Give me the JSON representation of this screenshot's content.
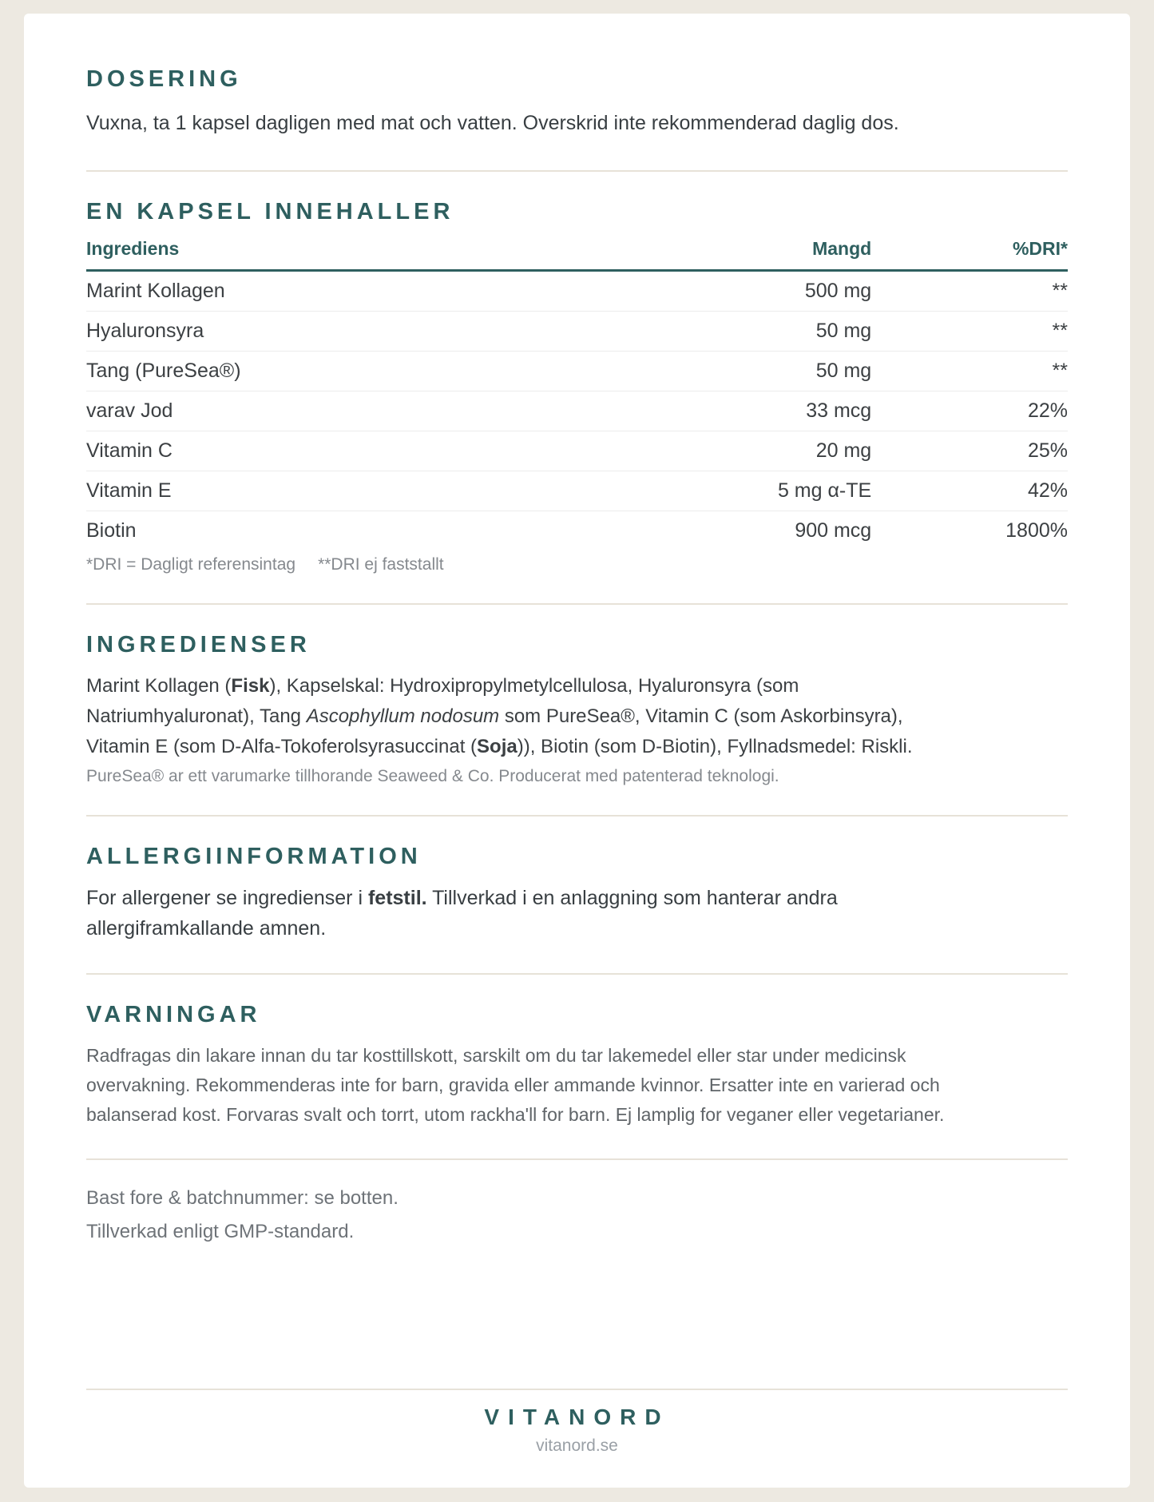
{
  "colors": {
    "accent_teal": "#2E5F5F",
    "background": "#EDE9E1",
    "card": "#FFFFFF",
    "divider": "#E7E2D8"
  },
  "dosering": {
    "title": "DOSERING",
    "body": "Vuxna, ta 1 kapsel dagligen med mat och vatten. Overskrid inte rekommenderad daglig dos."
  },
  "kapsel": {
    "title": "EN KAPSEL INNEHALLER",
    "columns": {
      "ingredient": "Ingrediens",
      "amount": "Mangd",
      "dri": "%DRI*"
    },
    "rows": [
      {
        "name": "Marint Kollagen",
        "amount": "500 mg",
        "dri": "**"
      },
      {
        "name": "Hyaluronsyra",
        "amount": "50 mg",
        "dri": "**"
      },
      {
        "name": "Tang (PureSea®)",
        "amount": "50 mg",
        "dri": "**"
      },
      {
        "name": "varav Jod",
        "amount": "33 mcg",
        "dri": "22%"
      },
      {
        "name": "Vitamin C",
        "amount": "20 mg",
        "dri": "25%"
      },
      {
        "name": "Vitamin E",
        "amount": "5 mg α-TE",
        "dri": "42%"
      },
      {
        "name": "Biotin",
        "amount": "900 mcg",
        "dri": "1800%"
      }
    ],
    "footnote_left": "*DRI = Dagligt referensintag",
    "footnote_right": "**DRI ej faststallt"
  },
  "ingredienser": {
    "title": "INGREDIENSER",
    "segments": [
      {
        "text": "Marint Kollagen ("
      },
      {
        "text": "Fisk"
      },
      {
        "text": "), Kapselskal: Hydroxipropylmetylcellulosa, Hyaluronsyra (som Natriumhyaluronat), Tang "
      },
      {
        "text": "Ascophyllum nodosum"
      },
      {
        "text": " som PureSea®, Vitamin C (som Askorbinsyra), Vitamin E (som D-Alfa-Tokoferolsyrasuccinat ("
      },
      {
        "text": "Soja"
      },
      {
        "text": ")), Biotin (som D-Biotin), Fyllnadsmedel: Riskli."
      }
    ],
    "trademark_note": "PureSea® ar ett varumarke tillhorande Seaweed & Co. Producerat med patenterad teknologi."
  },
  "allergi": {
    "title": "ALLERGIINFORMATION",
    "segments": [
      {
        "text": "For allergener se ingredienser i "
      },
      {
        "text": "fetstil."
      },
      {
        "text": " Tillverkad i en anlaggning som hanterar andra allergiframkallande amnen."
      }
    ]
  },
  "varningar": {
    "title": "VARNINGAR",
    "body": "Radfragas din lakare innan du tar kosttillskott, sarskilt om du tar lakemedel eller star under medicinsk overvakning. Rekommenderas inte for barn, gravida eller ammande kvinnor. Ersatter inte en varierad och balanserad kost. Forvaras svalt och torrt, utom rackha'll for barn. Ej lamplig for veganer eller vegetarianer."
  },
  "storage": {
    "line1": "Bast fore & batchnummer: se botten.",
    "line2": "Tillverkad enligt GMP-standard."
  },
  "footer": {
    "brand": "VITANORD",
    "website": "vitanord.se"
  }
}
